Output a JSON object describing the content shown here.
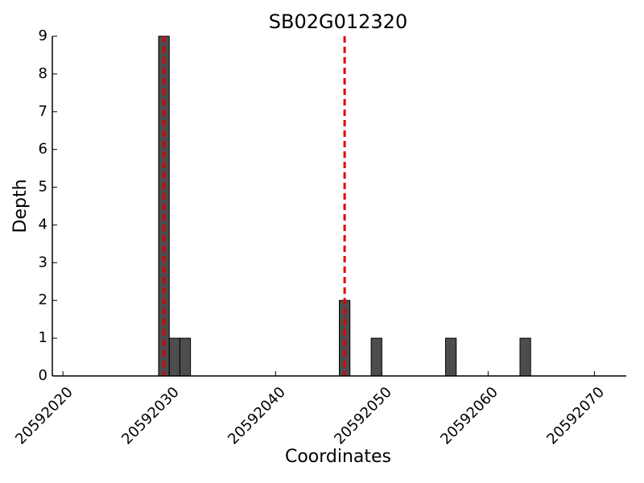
{
  "chart_data": {
    "type": "bar",
    "title": "SB02G012320",
    "x_label": "Coordinates",
    "y_label": "Depth",
    "x": [
      20592029,
      20592030,
      20592031,
      20592046,
      20592049,
      20592056,
      20592063
    ],
    "values": [
      9,
      1,
      1,
      2,
      1,
      1,
      1
    ],
    "color": "#4d4d4d",
    "edge_color": "#000000",
    "vlines": [
      20592029.5,
      20592046.5
    ],
    "vline_color": "#e00000",
    "xlim": [
      20592019,
      20592073
    ],
    "xticks": [
      20592020,
      20592030,
      20592040,
      20592050,
      20592060,
      20592070
    ],
    "ylim": [
      0,
      9
    ],
    "yticks": [
      0,
      1,
      2,
      3,
      4,
      5,
      6,
      7,
      8,
      9
    ],
    "grid": false
  }
}
